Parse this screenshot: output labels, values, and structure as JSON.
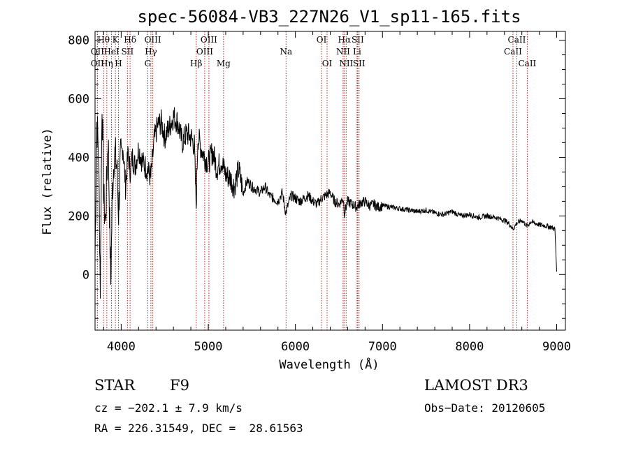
{
  "chart_data": {
    "type": "line",
    "title": "spec-56084-VB3_227N26_V1_sp11-165.fits",
    "xlabel": "Wavelength (Å)",
    "ylabel": "Flux (relative)",
    "xlim": [
      3700,
      9100
    ],
    "ylim": [
      -190,
      830
    ],
    "xticks": [
      4000,
      5000,
      6000,
      7000,
      8000,
      9000
    ],
    "yticks": [
      0,
      200,
      400,
      600,
      800
    ],
    "series": [
      {
        "name": "flux",
        "x": [
          3700,
          3720,
          3740,
          3760,
          3780,
          3800,
          3820,
          3850,
          3880,
          3900,
          3920,
          3950,
          3970,
          3990,
          4020,
          4050,
          4080,
          4100,
          4130,
          4160,
          4200,
          4250,
          4300,
          4340,
          4380,
          4420,
          4460,
          4500,
          4550,
          4600,
          4650,
          4700,
          4750,
          4800,
          4840,
          4860,
          4880,
          4920,
          4960,
          5000,
          5050,
          5100,
          5150,
          5200,
          5250,
          5300,
          5350,
          5400,
          5450,
          5500,
          5550,
          5600,
          5650,
          5700,
          5750,
          5800,
          5850,
          5890,
          5950,
          6000,
          6050,
          6100,
          6150,
          6200,
          6250,
          6300,
          6350,
          6400,
          6450,
          6500,
          6550,
          6563,
          6600,
          6650,
          6700,
          6750,
          6800,
          6850,
          6900,
          6950,
          7000,
          7100,
          7200,
          7300,
          7400,
          7500,
          7600,
          7700,
          7800,
          7900,
          8000,
          8100,
          8200,
          8300,
          8400,
          8450,
          8498,
          8542,
          8600,
          8662,
          8700,
          8800,
          8900,
          8950,
          8980,
          9000
        ],
        "y": [
          60,
          520,
          420,
          -40,
          600,
          250,
          180,
          480,
          -30,
          290,
          420,
          370,
          210,
          380,
          440,
          300,
          420,
          350,
          400,
          370,
          430,
          380,
          360,
          330,
          460,
          510,
          520,
          470,
          500,
          540,
          520,
          450,
          480,
          470,
          440,
          230,
          470,
          430,
          400,
          380,
          420,
          360,
          390,
          340,
          330,
          300,
          360,
          280,
          320,
          300,
          290,
          280,
          300,
          270,
          260,
          250,
          280,
          210,
          270,
          260,
          250,
          260,
          270,
          250,
          240,
          260,
          270,
          280,
          250,
          240,
          260,
          210,
          250,
          240,
          230,
          245,
          250,
          235,
          240,
          230,
          235,
          230,
          225,
          220,
          215,
          220,
          210,
          205,
          215,
          200,
          205,
          195,
          200,
          195,
          185,
          175,
          155,
          175,
          185,
          165,
          180,
          170,
          165,
          160,
          155,
          10
        ]
      }
    ],
    "lines": [
      {
        "label": "Hθ",
        "x": 3798,
        "row": 1
      },
      {
        "label": "OII",
        "x": 3727,
        "row": 2
      },
      {
        "label": "OII",
        "x": 3727,
        "row": 3
      },
      {
        "label": "HeI",
        "x": 3889,
        "row": 2
      },
      {
        "label": "Hη",
        "x": 3835,
        "row": 3
      },
      {
        "label": "K",
        "x": 3934,
        "row": 1
      },
      {
        "label": "H",
        "x": 3969,
        "row": 3
      },
      {
        "label": "SII",
        "x": 4072,
        "row": 2
      },
      {
        "label": "Hδ",
        "x": 4102,
        "row": 1
      },
      {
        "label": "OIII",
        "x": 4363,
        "row": 1
      },
      {
        "label": "Hγ",
        "x": 4341,
        "row": 2
      },
      {
        "label": "G",
        "x": 4305,
        "row": 3
      },
      {
        "label": "Hβ",
        "x": 4861,
        "row": 3
      },
      {
        "label": "OIII",
        "x": 5007,
        "row": 1
      },
      {
        "label": "OIII",
        "x": 4959,
        "row": 2
      },
      {
        "label": "Mg",
        "x": 5175,
        "row": 3
      },
      {
        "label": "Na",
        "x": 5893,
        "row": 2
      },
      {
        "label": "OI",
        "x": 6300,
        "row": 1
      },
      {
        "label": "OI",
        "x": 6364,
        "row": 3
      },
      {
        "label": "Hα",
        "x": 6563,
        "row": 1
      },
      {
        "label": "NII",
        "x": 6548,
        "row": 2
      },
      {
        "label": "NII",
        "x": 6583,
        "row": 3
      },
      {
        "label": "SII",
        "x": 6716,
        "row": 1
      },
      {
        "label": "Li",
        "x": 6708,
        "row": 2
      },
      {
        "label": "SII",
        "x": 6731,
        "row": 3
      },
      {
        "label": "CaII",
        "x": 8498,
        "row": 2
      },
      {
        "label": "CaII",
        "x": 8542,
        "row": 1
      },
      {
        "label": "CaII",
        "x": 8662,
        "row": 3
      }
    ],
    "grid": false,
    "line_color": "#000000",
    "marker_color": "#b22222"
  },
  "info": {
    "class": "STAR",
    "subclass": "F9",
    "cz": "cz = −202.1 ± 7.9 km/s",
    "coords": "RA = 226.31549, DEC =  28.61563",
    "survey": "LAMOST DR3",
    "obs_date": "Obs−Date: 20120605"
  }
}
